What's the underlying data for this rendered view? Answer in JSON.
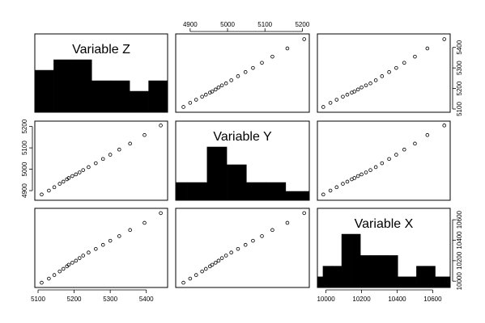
{
  "chart_data": {
    "type": "scatter-matrix",
    "variables": [
      "Variable Z",
      "Variable Y",
      "Variable X"
    ],
    "ranges": {
      "Z": [
        5100,
        5450
      ],
      "Y": [
        4870,
        5210
      ],
      "X": [
        9970,
        10680
      ]
    },
    "ticks": {
      "Z": [
        "5100",
        "5200",
        "5300",
        "5400"
      ],
      "Y": [
        "4900",
        "5000",
        "5100",
        "5200"
      ],
      "X": [
        "10000",
        "10200",
        "10400",
        "10600"
      ]
    },
    "histograms": {
      "Z": {
        "breaks": [
          5100,
          5150,
          5200,
          5250,
          5300,
          5350,
          5400,
          5450
        ],
        "counts": [
          4,
          5,
          5,
          3,
          3,
          2,
          3
        ]
      },
      "Y": {
        "breaks": [
          4850,
          4900,
          4950,
          5000,
          5050,
          5100,
          5150,
          5200,
          5250
        ],
        "counts": [
          1,
          1,
          3,
          2,
          1,
          1,
          0.5,
          0.5
        ]
      },
      "X": {
        "breaks": [
          9950,
          10000,
          10050,
          10100,
          10150,
          10200,
          10250,
          10300,
          10350,
          10400,
          10450,
          10500,
          10550,
          10600,
          10650,
          10700
        ],
        "counts": [
          1,
          2,
          2,
          5,
          5,
          3,
          3,
          3,
          3,
          1,
          1,
          2,
          2,
          1,
          1
        ]
      }
    },
    "points": {
      "Z": [
        5110,
        5130,
        5145,
        5160,
        5170,
        5180,
        5185,
        5195,
        5205,
        5215,
        5225,
        5240,
        5260,
        5280,
        5300,
        5325,
        5355,
        5395,
        5440
      ],
      "Y": [
        4882,
        4900,
        4916,
        4932,
        4942,
        4953,
        4959,
        4968,
        4976,
        4985,
        4996,
        5010,
        5028,
        5048,
        5068,
        5092,
        5120,
        5160,
        5205
      ],
      "X": [
        9985,
        10025,
        10060,
        10095,
        10120,
        10145,
        10160,
        10180,
        10200,
        10225,
        10250,
        10280,
        10315,
        10355,
        10395,
        10440,
        10500,
        10570,
        10665
      ]
    }
  }
}
